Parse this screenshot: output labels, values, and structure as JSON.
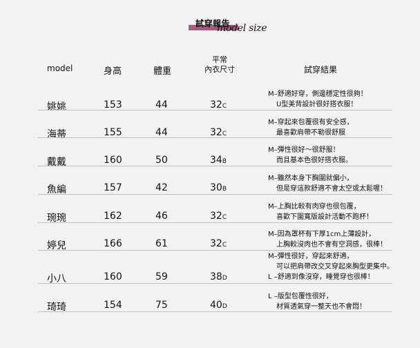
{
  "title": "試穿報告",
  "subtitle": "model size",
  "accent": "#a65b80",
  "headers": {
    "model": "model",
    "height": "身高",
    "weight": "體重",
    "size_line1": "平常",
    "size_line2": "內衣尺寸",
    "feedback": "試穿結果"
  },
  "rows": [
    {
      "name": "姚姚",
      "height": "153",
      "weight": "44",
      "band": "32",
      "cup": "C",
      "feedback": [
        "M–舒適好穿，側邊穩定性很夠！",
        "U型美背設計很好搭衣服！"
      ]
    },
    {
      "name": "海蒂",
      "height": "155",
      "weight": "44",
      "band": "32",
      "cup": "C",
      "feedback": [
        "M–穿起來包覆很有安全感，",
        "最喜歡肩帶不勒很舒服"
      ]
    },
    {
      "name": "戴戴",
      "height": "160",
      "weight": "50",
      "band": "34",
      "cup": "B",
      "feedback": [
        "M–彈性很好～很舒服！",
        "而且基本色很好搭衣服。"
      ]
    },
    {
      "name": "魚編",
      "height": "157",
      "weight": "42",
      "band": "30",
      "cup": "B",
      "feedback": [
        "M–雖然本身下胸圍就偏小，",
        "但是穿這款舒適不會太空或太鬆喔！"
      ]
    },
    {
      "name": "琬琬",
      "height": "162",
      "weight": "46",
      "band": "32",
      "cup": "C",
      "feedback": [
        "M–上胸比較有肉穿也很包覆，",
        "喜歡下圍寬版設計活動不跑杯！"
      ]
    },
    {
      "name": "婷兒",
      "height": "166",
      "weight": "61",
      "band": "32",
      "cup": "C",
      "feedback": [
        "M–因為罩杯有下厚1cm上薄設計，",
        "上胸較沒肉也不會有空洞感，很棒！"
      ]
    },
    {
      "name": "小八",
      "height": "160",
      "weight": "59",
      "band": "38",
      "cup": "D",
      "feedback": [
        "M–彈性很好，穿起來舒適，",
        "可以把肩帶改交叉穿起來胸型更集中。",
        "L –舒適到像沒穿，睡覺穿也很棒！"
      ]
    },
    {
      "name": "琦琦",
      "height": "154",
      "weight": "75",
      "band": "40",
      "cup": "D",
      "feedback": [
        "L –版型包覆性很好，",
        "材質透氣穿一整天也不會悶！"
      ]
    }
  ]
}
